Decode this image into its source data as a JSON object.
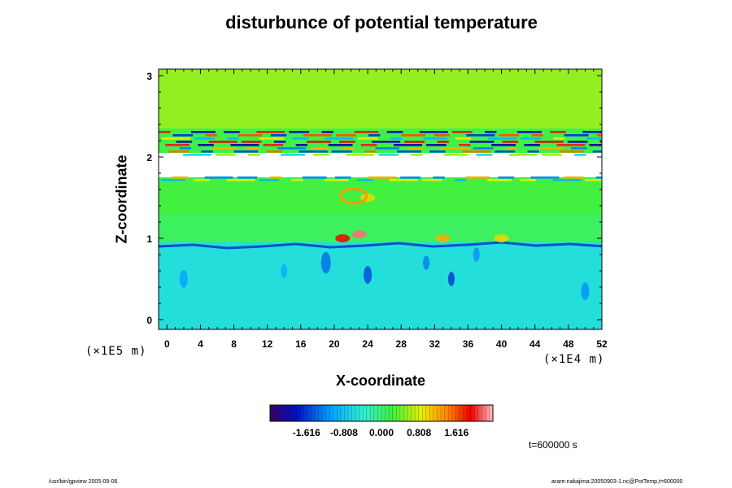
{
  "chart_data": {
    "type": "heatmap",
    "title": "disturbunce of potential temperature",
    "xlabel": "X-coordinate",
    "ylabel": "Z-coordinate",
    "x_unit": "(×1E4 m)",
    "y_unit": "(×1E5 m)",
    "xlim": [
      -1,
      52
    ],
    "ylim": [
      -0.12,
      3.08
    ],
    "xticks": [
      0,
      4,
      8,
      12,
      16,
      20,
      24,
      28,
      32,
      36,
      40,
      44,
      48,
      52
    ],
    "yticks": [
      0,
      1,
      2,
      3
    ],
    "colorbar": {
      "ticks": [
        -1.616,
        -0.808,
        0.0,
        0.808,
        1.616
      ],
      "tick_labels": [
        "-1.616",
        "-0.808",
        "0.000",
        "0.808",
        "1.616"
      ],
      "range": [
        -2.4,
        2.4
      ]
    },
    "bands": [
      {
        "z": [
          2.35,
          3.08
        ],
        "value": 0.55
      },
      {
        "z": [
          1.75,
          2.05
        ],
        "value": null
      },
      {
        "z": [
          1.3,
          1.72
        ],
        "value": 0.25
      },
      {
        "z": [
          0.95,
          1.3
        ],
        "value": 0.1
      },
      {
        "z": [
          -0.12,
          0.95
        ],
        "value": -0.55
      }
    ],
    "annotations": [
      "t=600000 s"
    ]
  },
  "footer": {
    "left": "/usr/bin/gpview 2005-09-06",
    "right": "arare-nakajima:20050903-1.nc@PotTemp,t=600000"
  }
}
